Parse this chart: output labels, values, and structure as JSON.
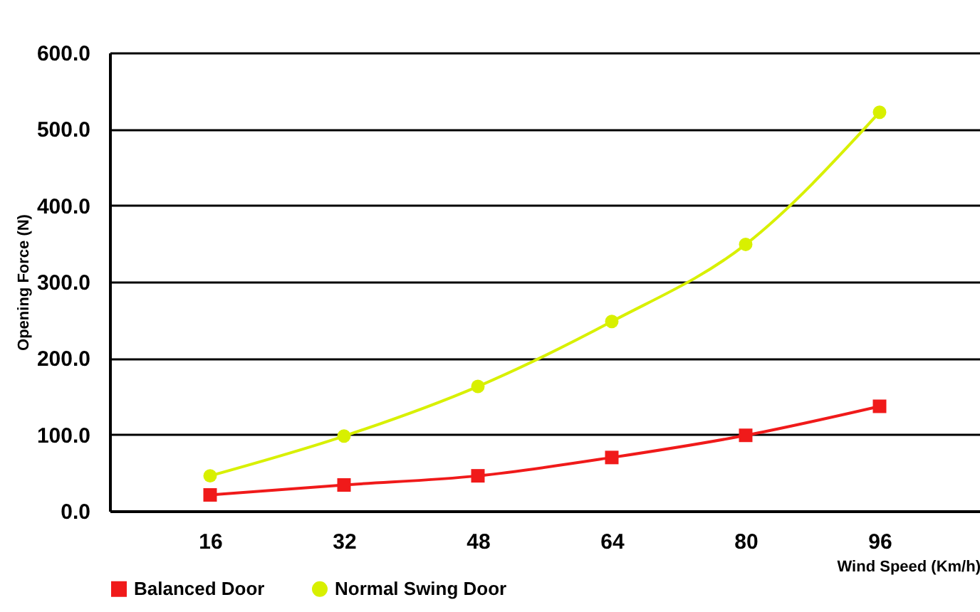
{
  "chart_data": {
    "type": "line",
    "xlabel": "Wind Speed (Km/h)",
    "ylabel": "Opening Force (N)",
    "x": [
      16,
      32,
      48,
      64,
      80,
      96
    ],
    "series": [
      {
        "name": "Balanced Door",
        "color": "#f01a1a",
        "marker": "square",
        "values": [
          21,
          34,
          46,
          70,
          99,
          137
        ]
      },
      {
        "name": "Normal Swing Door",
        "color": "#d8f000",
        "marker": "circle",
        "values": [
          46,
          98,
          163,
          248,
          349,
          522
        ]
      }
    ],
    "xlim": [
      4,
      108
    ],
    "xticks": [
      16,
      32,
      48,
      64,
      80,
      96
    ],
    "ylim": [
      0,
      600
    ],
    "yticks": [
      {
        "value": 0,
        "label": "0.0"
      },
      {
        "value": 100,
        "label": "100.0"
      },
      {
        "value": 200,
        "label": "200.0"
      },
      {
        "value": 300,
        "label": "300.0"
      },
      {
        "value": 400,
        "label": "400.0"
      },
      {
        "value": 500,
        "label": "500.0"
      },
      {
        "value": 600,
        "label": "600.0"
      }
    ],
    "grid": "y",
    "legend": "bottom left",
    "line_style": "solid"
  }
}
